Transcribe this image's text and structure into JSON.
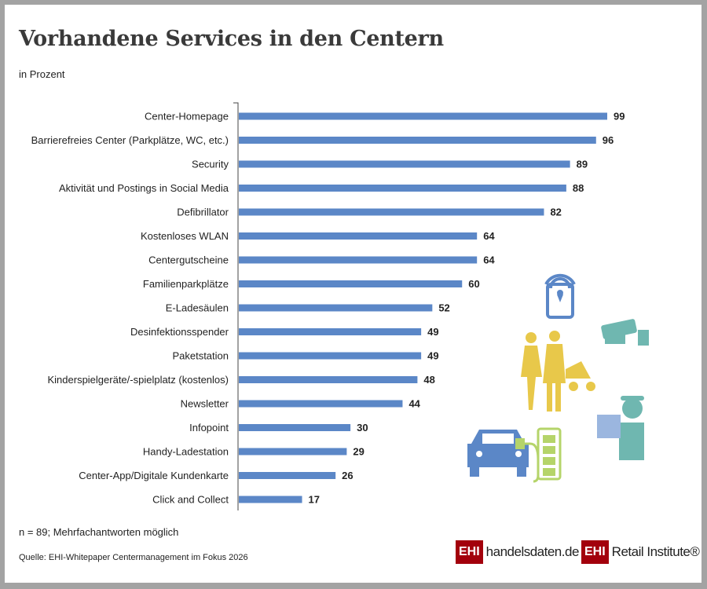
{
  "title": "Vorhandene Services in den Centern",
  "subtitle": "in Prozent",
  "note": "n = 89; Mehrfachantworten möglich",
  "source": "Quelle: EHI-Whitepaper Centermanagement im Fokus 2026",
  "logos": {
    "left_badge": "EHI",
    "left_text": "handelsdaten.de",
    "right_badge": "EHI",
    "right_text": "Retail Institute®"
  },
  "colors": {
    "bar": "#5b87c7",
    "brand": "#a3000c",
    "illustration_blue": "#5b87c7",
    "illustration_teal": "#6fb7b0",
    "illustration_yellow": "#e8c84a",
    "illustration_green": "#b5d46a"
  },
  "chart_data": {
    "type": "bar",
    "orientation": "horizontal",
    "title": "Vorhandene Services in den Centern",
    "subtitle": "in Prozent",
    "categories": [
      "Center-Homepage",
      "Barrierefreies Center (Parkplätze, WC, etc.)",
      "Security",
      "Aktivität und Postings in Social Media",
      "Defibrillator",
      "Kostenloses WLAN",
      "Centergutscheine",
      "Familienparkplätze",
      "E-Ladesäulen",
      "Desinfektionsspender",
      "Paketstation",
      "Kinderspielgeräte/-spielplatz (kostenlos)",
      "Newsletter",
      "Infopoint",
      "Handy-Ladestation",
      "Center-App/Digitale Kundenkarte",
      "Click and Collect"
    ],
    "values": [
      99,
      96,
      89,
      88,
      82,
      64,
      64,
      60,
      52,
      49,
      49,
      48,
      44,
      30,
      29,
      26,
      17
    ],
    "xlim": [
      0,
      100
    ],
    "grid": false,
    "data_labels": true
  }
}
